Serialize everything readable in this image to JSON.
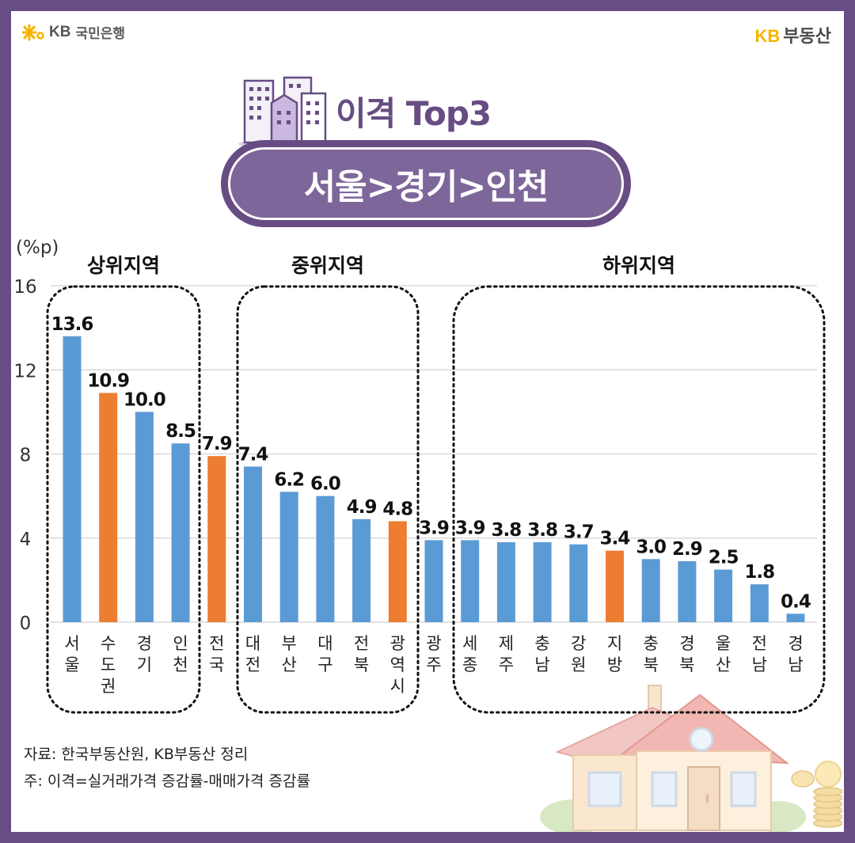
{
  "header": {
    "left_brand_kb": "KB",
    "left_brand_name": "국민은행",
    "right_brand_kb": "KB",
    "right_brand_name": "부동산"
  },
  "title": "이격 Top3",
  "banner": "서울>경기>인천",
  "groups": [
    "상위지역",
    "중위지역",
    "하위지역"
  ],
  "chart_data": {
    "type": "bar",
    "ylabel": "(%p)",
    "ylim": [
      0,
      16
    ],
    "yticks": [
      0,
      4,
      8,
      12,
      16
    ],
    "grid": true,
    "categories": [
      "서울",
      "수도권",
      "경기",
      "인천",
      "전국",
      "대전",
      "부산",
      "대구",
      "전북",
      "광역시",
      "광주",
      "세종",
      "제주",
      "충남",
      "강원",
      "지방",
      "충북",
      "경북",
      "울산",
      "전남",
      "경남"
    ],
    "values": [
      13.6,
      10.9,
      10.0,
      8.5,
      7.9,
      7.4,
      6.2,
      6.0,
      4.9,
      4.8,
      3.9,
      3.9,
      3.8,
      3.8,
      3.7,
      3.4,
      3.0,
      2.9,
      2.5,
      1.8,
      0.4
    ],
    "value_labels": [
      "13.6",
      "10.9",
      "10.0",
      "8.5",
      "7.9",
      "7.4",
      "6.2",
      "6.0",
      "4.9",
      "4.8",
      "3.9",
      "3.9",
      "3.8",
      "3.8",
      "3.7",
      "3.4",
      "3.0",
      "2.9",
      "2.5",
      "1.8",
      "0.4"
    ],
    "highlight": [
      false,
      true,
      false,
      false,
      true,
      false,
      false,
      false,
      false,
      true,
      false,
      false,
      false,
      false,
      false,
      true,
      false,
      false,
      false,
      false,
      false
    ],
    "colors": {
      "bar": "#5b9bd5",
      "highlight": "#ed7d31",
      "grid": "#d9d9d9",
      "dotted": "#111111"
    }
  },
  "source": "자료: 한국부동산원, KB부동산 정리",
  "note": "주: 이격=실거래가격 증감률-매매가격 증감률"
}
